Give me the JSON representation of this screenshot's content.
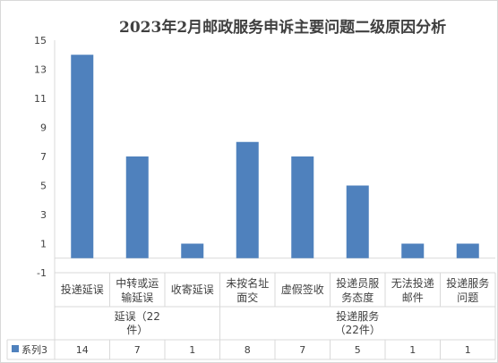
{
  "chart_data": {
    "type": "bar",
    "title": "2023年2月邮政服务申诉主要问题二级原因分析",
    "xlabel": "",
    "ylabel": "",
    "ylim": [
      -1,
      15
    ],
    "yticks": [
      "15",
      "13",
      "11",
      "9",
      "7",
      "5",
      "3",
      "1",
      "-1"
    ],
    "ytick_values": [
      15,
      13,
      11,
      9,
      7,
      5,
      3,
      1,
      -1
    ],
    "categories": [
      [
        "投递延误"
      ],
      [
        "中转或运",
        "输延误"
      ],
      [
        "收寄延误"
      ],
      [
        "未按名址",
        "面交"
      ],
      [
        "虚假签收"
      ],
      [
        "投递员服",
        "务态度"
      ],
      [
        "无法投递",
        "邮件"
      ],
      [
        "投递服务",
        "问题"
      ]
    ],
    "groups": [
      {
        "label": [
          "延误（22",
          "件）"
        ],
        "count": 3
      },
      {
        "label": [
          "投递服务",
          "（22件）"
        ],
        "count": 5
      }
    ],
    "series": [
      {
        "name": "系列3",
        "values": [
          14,
          7,
          1,
          8,
          7,
          5,
          1,
          1
        ],
        "color": "#4f81bd"
      }
    ],
    "grid": false,
    "legend": "data-table"
  }
}
